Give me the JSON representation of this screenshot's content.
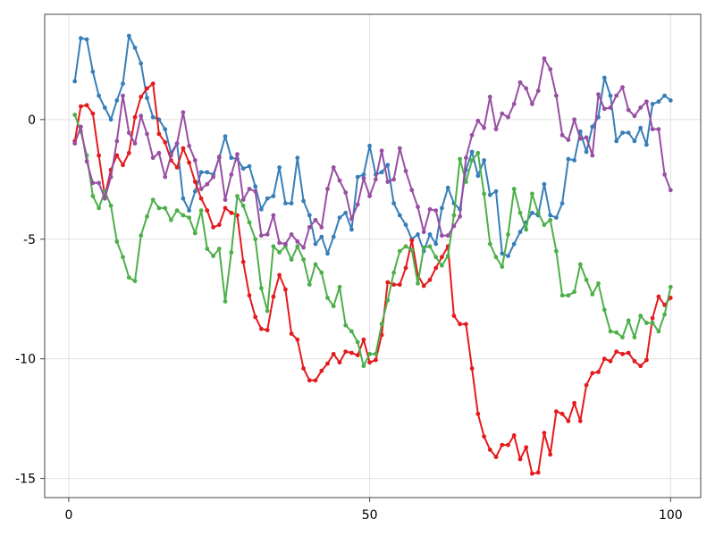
{
  "chart_data": {
    "type": "line",
    "title": "",
    "xlabel": "",
    "ylabel": "",
    "xlim": [
      -4,
      105
    ],
    "ylim": [
      -15.8,
      4.4
    ],
    "grid": true,
    "markers": true,
    "x_ticks": [
      0,
      50,
      100
    ],
    "x_tick_labels": [
      "0",
      "50",
      "100"
    ],
    "y_ticks": [
      -15,
      -10,
      -5,
      0
    ],
    "y_tick_labels": [
      "-15",
      "-10",
      "-5",
      "0"
    ],
    "x": [
      1,
      2,
      3,
      4,
      5,
      6,
      7,
      8,
      9,
      10,
      11,
      12,
      13,
      14,
      15,
      16,
      17,
      18,
      19,
      20,
      21,
      22,
      23,
      24,
      25,
      26,
      27,
      28,
      29,
      30,
      31,
      32,
      33,
      34,
      35,
      36,
      37,
      38,
      39,
      40,
      41,
      42,
      43,
      44,
      45,
      46,
      47,
      48,
      49,
      50,
      51,
      52,
      53,
      54,
      55,
      56,
      57,
      58,
      59,
      60,
      61,
      62,
      63,
      64,
      65,
      66,
      67,
      68,
      69,
      70,
      71,
      72,
      73,
      74,
      75,
      76,
      77,
      78,
      79,
      80,
      81,
      82,
      83,
      84,
      85,
      86,
      87,
      88,
      89,
      90,
      91,
      92,
      93,
      94,
      95,
      96,
      97,
      98,
      99,
      100
    ],
    "series": [
      {
        "color": "#377eb8",
        "values": [
          1.6,
          3.4,
          3.35,
          2.0,
          1.0,
          0.5,
          0.0,
          0.8,
          1.5,
          3.5,
          3.0,
          2.35,
          0.9,
          0.1,
          0.0,
          -0.4,
          -1.4,
          -1.0,
          -3.3,
          -3.8,
          -3.0,
          -2.2,
          -2.2,
          -2.3,
          -1.6,
          -0.7,
          -1.6,
          -1.65,
          -2.05,
          -1.95,
          -2.8,
          -3.75,
          -3.3,
          -3.2,
          -2.0,
          -3.5,
          -3.5,
          -1.6,
          -3.4,
          -4.0,
          -5.2,
          -4.9,
          -5.6,
          -4.9,
          -4.1,
          -3.9,
          -4.6,
          -2.4,
          -2.3,
          -1.1,
          -2.3,
          -2.2,
          -1.9,
          -3.5,
          -4.0,
          -4.4,
          -5.0,
          -4.8,
          -5.5,
          -4.8,
          -5.2,
          -3.7,
          -2.85,
          -3.5,
          -3.75,
          -2.1,
          -1.35,
          -2.35,
          -1.7,
          -3.15,
          -3.0,
          -5.6,
          -5.7,
          -5.2,
          -4.7,
          -4.3,
          -3.9,
          -4.0,
          -2.7,
          -4.0,
          -4.1,
          -3.5,
          -1.65,
          -1.7,
          -0.5,
          -1.35,
          -0.3,
          0.1,
          1.75,
          1.0,
          -0.9,
          -0.55,
          -0.55,
          -0.9,
          -0.35,
          -1.05,
          0.65,
          0.75,
          1.0,
          0.8
        ]
      },
      {
        "color": "#e41a1c",
        "values": [
          -0.9,
          0.55,
          0.6,
          0.25,
          -1.5,
          -3.2,
          -2.1,
          -1.5,
          -1.9,
          -1.4,
          0.1,
          0.95,
          1.3,
          1.5,
          -0.6,
          -0.95,
          -1.7,
          -2.0,
          -1.2,
          -1.8,
          -2.6,
          -3.3,
          -3.8,
          -4.5,
          -4.4,
          -3.7,
          -3.9,
          -4.0,
          -5.95,
          -7.35,
          -8.25,
          -8.75,
          -8.8,
          -7.4,
          -6.5,
          -7.1,
          -8.95,
          -9.2,
          -10.4,
          -10.9,
          -10.9,
          -10.5,
          -10.2,
          -9.8,
          -10.15,
          -9.7,
          -9.75,
          -9.85,
          -9.2,
          -10.15,
          -10.05,
          -9.0,
          -6.8,
          -6.9,
          -6.9,
          -6.2,
          -5.05,
          -6.5,
          -6.95,
          -6.7,
          -6.2,
          -5.75,
          -5.3,
          -8.2,
          -8.55,
          -8.55,
          -10.4,
          -12.3,
          -13.25,
          -13.8,
          -14.1,
          -13.6,
          -13.6,
          -13.2,
          -14.2,
          -13.7,
          -14.8,
          -14.75,
          -13.1,
          -14.0,
          -12.2,
          -12.3,
          -12.6,
          -11.85,
          -12.6,
          -11.1,
          -10.6,
          -10.55,
          -10.0,
          -10.1,
          -9.7,
          -9.8,
          -9.75,
          -10.1,
          -10.3,
          -10.05,
          -8.3,
          -7.4,
          -7.75,
          -7.45
        ]
      },
      {
        "color": "#4daf4a",
        "values": [
          0.2,
          -0.5,
          -1.5,
          -3.2,
          -3.7,
          -3.0,
          -3.6,
          -5.1,
          -5.75,
          -6.6,
          -6.75,
          -4.85,
          -4.05,
          -3.35,
          -3.7,
          -3.7,
          -4.2,
          -3.8,
          -4.0,
          -4.1,
          -4.75,
          -3.8,
          -5.4,
          -5.7,
          -5.4,
          -7.6,
          -5.55,
          -3.2,
          -3.6,
          -4.3,
          -5.0,
          -7.05,
          -8.0,
          -5.3,
          -5.55,
          -5.3,
          -5.85,
          -5.3,
          -5.85,
          -6.9,
          -6.05,
          -6.4,
          -7.45,
          -7.8,
          -7.0,
          -8.6,
          -8.85,
          -9.3,
          -10.3,
          -9.8,
          -9.8,
          -8.55,
          -7.55,
          -6.4,
          -5.5,
          -5.3,
          -5.45,
          -6.85,
          -5.35,
          -5.3,
          -5.75,
          -6.1,
          -5.7,
          -4.0,
          -1.65,
          -2.6,
          -1.7,
          -1.4,
          -3.1,
          -5.2,
          -5.75,
          -6.15,
          -4.8,
          -2.9,
          -3.9,
          -4.6,
          -3.1,
          -3.9,
          -4.4,
          -4.2,
          -5.5,
          -7.35,
          -7.35,
          -7.2,
          -6.05,
          -6.7,
          -7.3,
          -6.85,
          -7.95,
          -8.85,
          -8.9,
          -9.1,
          -8.4,
          -9.1,
          -8.2,
          -8.5,
          -8.5,
          -8.85,
          -8.15,
          -7.0
        ]
      },
      {
        "color": "#984ea3",
        "values": [
          -1.0,
          -0.3,
          -1.75,
          -2.65,
          -2.65,
          -3.3,
          -2.4,
          -0.9,
          1.0,
          -0.55,
          -1.0,
          0.15,
          -0.6,
          -1.6,
          -1.4,
          -2.4,
          -1.5,
          -1.0,
          0.3,
          -1.1,
          -1.7,
          -2.9,
          -2.7,
          -2.4,
          -1.55,
          -3.35,
          -2.3,
          -1.45,
          -3.35,
          -2.9,
          -3.0,
          -4.85,
          -4.8,
          -4.0,
          -5.15,
          -5.2,
          -4.8,
          -5.1,
          -5.35,
          -4.5,
          -4.2,
          -4.5,
          -2.9,
          -2.0,
          -2.55,
          -3.05,
          -4.15,
          -3.55,
          -2.45,
          -3.2,
          -2.5,
          -1.3,
          -2.6,
          -2.5,
          -1.2,
          -2.15,
          -2.95,
          -3.65,
          -4.7,
          -3.75,
          -3.8,
          -4.85,
          -4.85,
          -4.45,
          -4.05,
          -1.6,
          -0.65,
          -0.05,
          -0.35,
          0.95,
          -0.4,
          0.25,
          0.1,
          0.65,
          1.55,
          1.3,
          0.65,
          1.2,
          2.55,
          2.1,
          1.0,
          -0.65,
          -0.85,
          0.0,
          -0.8,
          -0.75,
          -1.5,
          1.05,
          0.45,
          0.5,
          1.0,
          1.35,
          0.4,
          0.15,
          0.5,
          0.75,
          -0.4,
          -0.4,
          -2.3,
          -2.95
        ]
      }
    ]
  }
}
